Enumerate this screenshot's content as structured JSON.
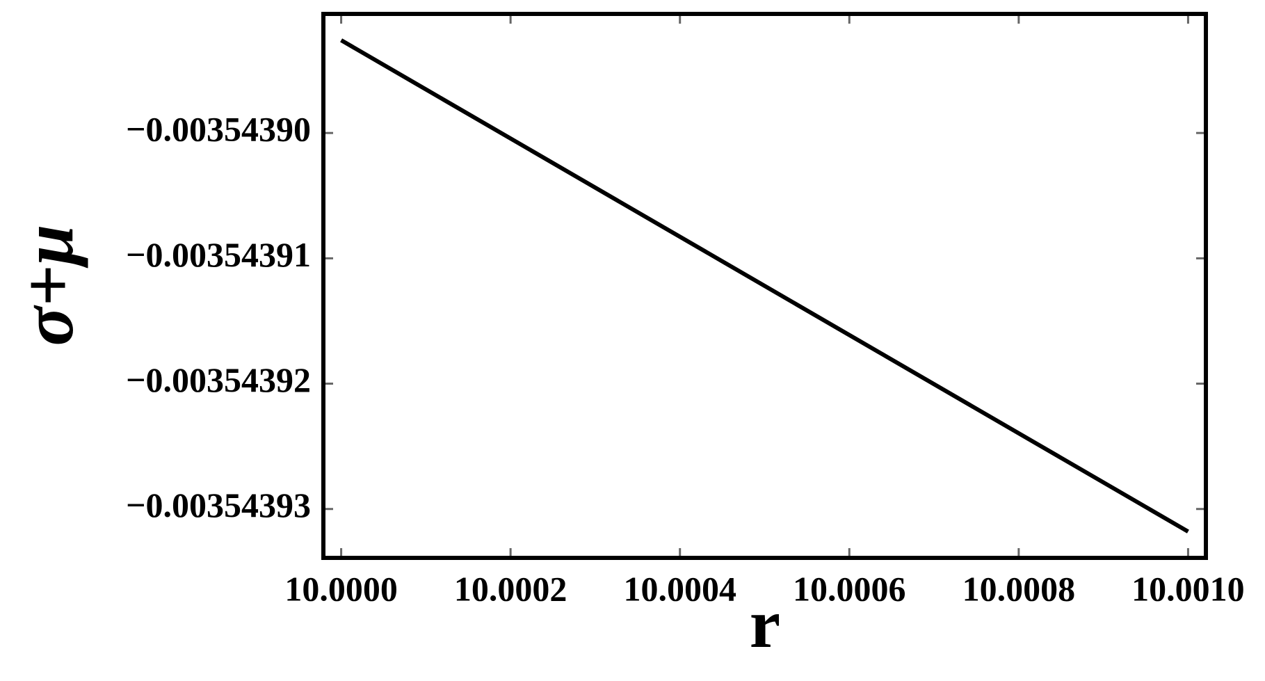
{
  "chart_data": {
    "type": "line",
    "xlabel": "r",
    "ylabel": "σ+μ",
    "x": [
      10.0,
      10.001
    ],
    "series": [
      {
        "color": "#000000",
        "values": [
          -0.0035438926,
          -0.0035439318
        ]
      }
    ],
    "xlim": [
      9.999979,
      10.001021
    ],
    "ylim": [
      -0.0035439339,
      -0.0035438905
    ],
    "xticks": [
      {
        "value": 10.0,
        "label": "10.0000"
      },
      {
        "value": 10.0002,
        "label": "10.0002"
      },
      {
        "value": 10.0004,
        "label": "10.0004"
      },
      {
        "value": 10.0006,
        "label": "10.0006"
      },
      {
        "value": 10.0008,
        "label": "10.0008"
      },
      {
        "value": 10.001,
        "label": "10.0010"
      }
    ],
    "yticks": [
      {
        "value": -0.0035439,
        "label": "−0.00354390"
      },
      {
        "value": -0.00354391,
        "label": "−0.00354391"
      },
      {
        "value": -0.00354392,
        "label": "−0.00354392"
      },
      {
        "value": -0.00354393,
        "label": "−0.00354393"
      }
    ]
  }
}
